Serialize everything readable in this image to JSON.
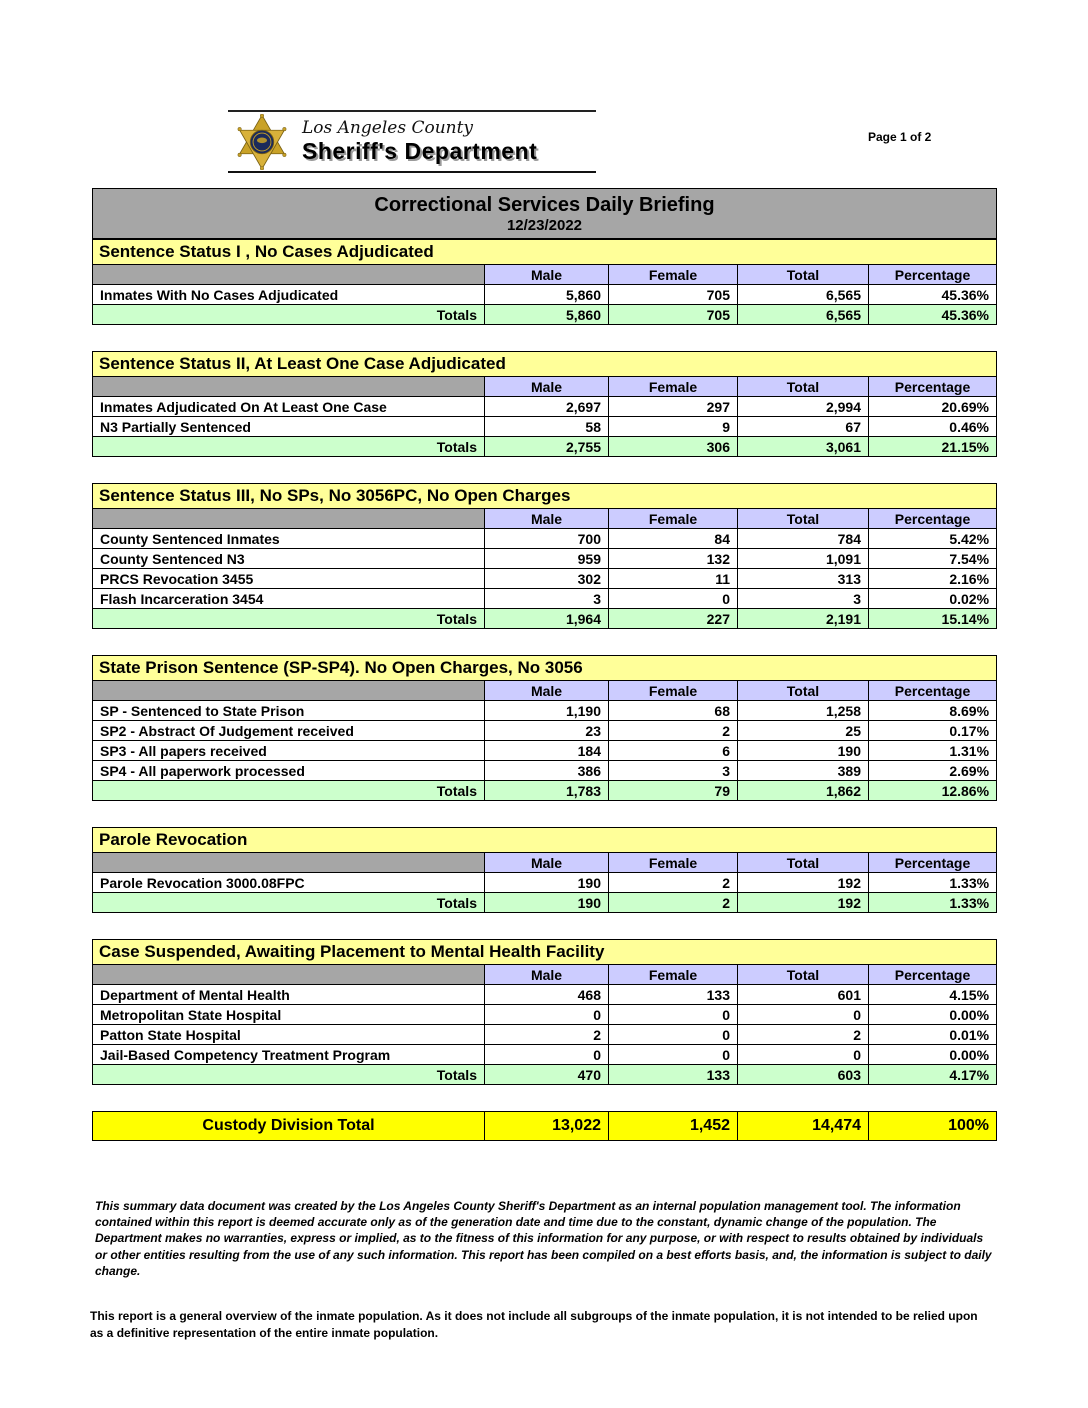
{
  "page": {
    "page_indicator": "Page 1 of 2"
  },
  "letterhead": {
    "county": "Los Angeles County",
    "department": "Sheriff's Department",
    "badge_icon": "sheriff-star-badge"
  },
  "report": {
    "title": "Correctional Services Daily Briefing",
    "date": "12/23/2022"
  },
  "columns": [
    "Male",
    "Female",
    "Total",
    "Percentage"
  ],
  "totals_label": "Totals",
  "sections": [
    {
      "title": "Sentence Status I , No Cases Adjudicated",
      "rows": [
        {
          "label": "Inmates With No Cases Adjudicated",
          "male": "5,860",
          "female": "705",
          "total": "6,565",
          "percentage": "45.36%"
        }
      ],
      "totals": {
        "male": "5,860",
        "female": "705",
        "total": "6,565",
        "percentage": "45.36%"
      }
    },
    {
      "title": "Sentence Status II, At Least One Case Adjudicated",
      "rows": [
        {
          "label": "Inmates Adjudicated On At Least One Case",
          "male": "2,697",
          "female": "297",
          "total": "2,994",
          "percentage": "20.69%"
        },
        {
          "label": "N3 Partially Sentenced",
          "male": "58",
          "female": "9",
          "total": "67",
          "percentage": "0.46%"
        }
      ],
      "totals": {
        "male": "2,755",
        "female": "306",
        "total": "3,061",
        "percentage": "21.15%"
      }
    },
    {
      "title": "Sentence Status III, No SPs, No 3056PC, No Open Charges",
      "rows": [
        {
          "label": "County Sentenced Inmates",
          "male": "700",
          "female": "84",
          "total": "784",
          "percentage": "5.42%"
        },
        {
          "label": "County Sentenced N3",
          "male": "959",
          "female": "132",
          "total": "1,091",
          "percentage": "7.54%"
        },
        {
          "label": "PRCS Revocation 3455",
          "male": "302",
          "female": "11",
          "total": "313",
          "percentage": "2.16%"
        },
        {
          "label": "Flash Incarceration 3454",
          "male": "3",
          "female": "0",
          "total": "3",
          "percentage": "0.02%"
        }
      ],
      "totals": {
        "male": "1,964",
        "female": "227",
        "total": "2,191",
        "percentage": "15.14%"
      }
    },
    {
      "title": "State Prison Sentence (SP-SP4). No Open Charges, No 3056",
      "rows": [
        {
          "label": "SP - Sentenced to State Prison",
          "male": "1,190",
          "female": "68",
          "total": "1,258",
          "percentage": "8.69%"
        },
        {
          "label": "SP2 - Abstract Of Judgement received",
          "male": "23",
          "female": "2",
          "total": "25",
          "percentage": "0.17%"
        },
        {
          "label": "SP3 - All papers received",
          "male": "184",
          "female": "6",
          "total": "190",
          "percentage": "1.31%"
        },
        {
          "label": "SP4 - All paperwork processed",
          "male": "386",
          "female": "3",
          "total": "389",
          "percentage": "2.69%"
        }
      ],
      "totals": {
        "male": "1,783",
        "female": "79",
        "total": "1,862",
        "percentage": "12.86%"
      }
    },
    {
      "title": "Parole Revocation",
      "rows": [
        {
          "label": "Parole Revocation 3000.08FPC",
          "male": "190",
          "female": "2",
          "total": "192",
          "percentage": "1.33%"
        }
      ],
      "totals": {
        "male": "190",
        "female": "2",
        "total": "192",
        "percentage": "1.33%"
      }
    },
    {
      "title": "Case Suspended, Awaiting Placement to Mental Health Facility",
      "rows": [
        {
          "label": "Department of Mental Health",
          "male": "468",
          "female": "133",
          "total": "601",
          "percentage": "4.15%"
        },
        {
          "label": "Metropolitan State Hospital",
          "male": "0",
          "female": "0",
          "total": "0",
          "percentage": "0.00%"
        },
        {
          "label": "Patton State Hospital",
          "male": "2",
          "female": "0",
          "total": "2",
          "percentage": "0.01%"
        },
        {
          "label": "Jail-Based Competency Treatment Program",
          "male": "0",
          "female": "0",
          "total": "0",
          "percentage": "0.00%"
        }
      ],
      "totals": {
        "male": "470",
        "female": "133",
        "total": "603",
        "percentage": "4.17%"
      }
    }
  ],
  "grand_total": {
    "label": "Custody Division Total",
    "male": "13,022",
    "female": "1,452",
    "total": "14,474",
    "percentage": "100%"
  },
  "footer": {
    "disclaimer": "This summary data document was created by the Los Angeles County Sheriff's Department as an internal population management tool.  The information contained within this report is deemed accurate only as of the generation date and time due to the constant, dynamic change of the population.  The Department makes no warranties, express or implied, as to the fitness of this information for any purpose, or with respect to results obtained by individuals or other entities resulting from the use of any such information.  This report has been compiled on a best efforts basis, and, the information is subject to daily change.",
    "note": "This report is a general overview of the inmate population.  As it does not include all subgroups of the inmate population, it is not intended to be relied upon as a definitive representation of the entire inmate population."
  },
  "colors": {
    "section_header": "#ffff99",
    "column_header": "#ccccff",
    "totals_row": "#ccffcc",
    "title_bar": "#a6a6a6",
    "grand_total_row": "#ffff00",
    "badge_gold": "#c9a227",
    "badge_navy": "#1b2a5b"
  }
}
